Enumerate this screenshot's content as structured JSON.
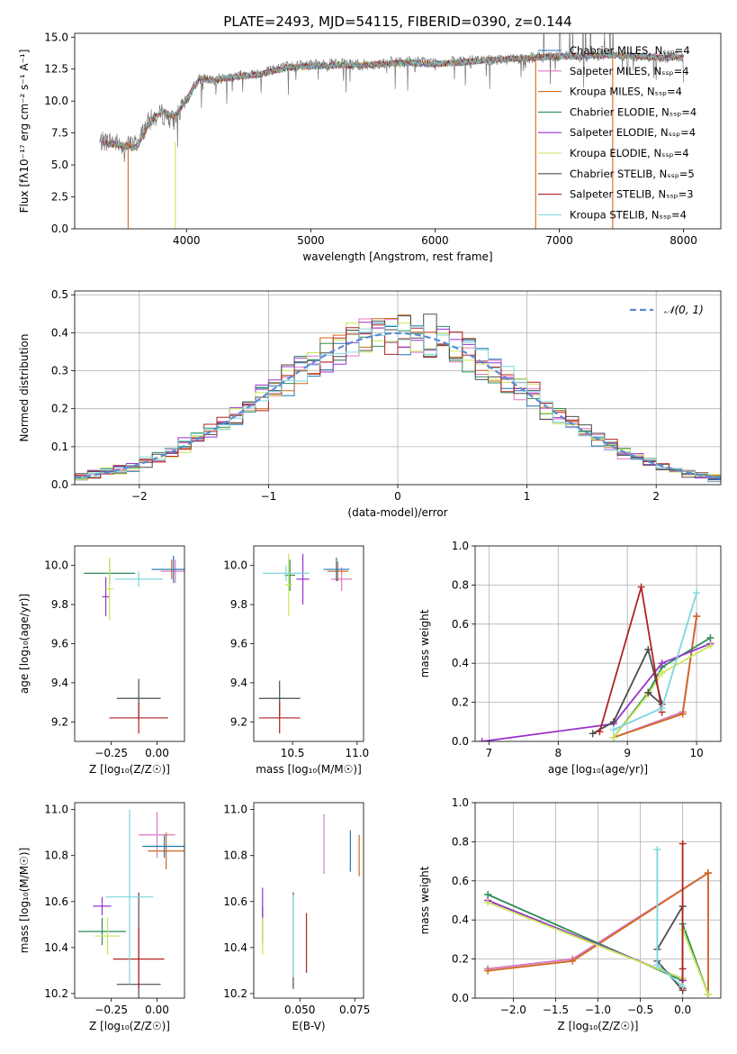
{
  "chart_data": [
    {
      "id": "spectrum",
      "type": "line",
      "title": "PLATE=2493, MJD=54115, FIBERID=0390, z=0.144",
      "xlabel": "wavelength [Angstrom, rest frame]",
      "ylabel": "Flux [fλ10⁻¹⁷ erg cm⁻² s⁻¹ A⁻¹]",
      "xlim": [
        3100,
        8300
      ],
      "ylim": [
        0,
        15.3
      ],
      "xticks": [
        4000,
        5000,
        6000,
        7000,
        8000
      ],
      "yticks": [
        0.0,
        2.5,
        5.0,
        7.5,
        10.0,
        12.5,
        15.0
      ],
      "legend": {
        "placement": "upper-right"
      },
      "series": [
        {
          "name": "Chabrier MILES, N_SSP=4",
          "color": "#1f77b4"
        },
        {
          "name": "Salpeter MILES, N_SSP=4",
          "color": "#e377c2"
        },
        {
          "name": "Kroupa MILES, N_SSP=4",
          "color": "#d2691e"
        },
        {
          "name": "Chabrier ELODIE, N_SSP=4",
          "color": "#2e8b57"
        },
        {
          "name": "Salpeter ELODIE, N_SSP=4",
          "color": "#9932cc"
        },
        {
          "name": "Kroupa ELODIE, N_SSP=4",
          "color": "#c8e65a"
        },
        {
          "name": "Chabrier STELIB, N_SSP=5",
          "color": "#4d4d4d"
        },
        {
          "name": "Salpeter STELIB, N_SSP=3",
          "color": "#b22222"
        },
        {
          "name": "Kroupa STELIB, N_SSP=4",
          "color": "#7fd6dc"
        }
      ],
      "data_series": {
        "name": "data",
        "color": "#777777",
        "x": [
          3300,
          3400,
          3500,
          3600,
          3700,
          3800,
          3900,
          4000,
          4100,
          4200,
          4400,
          4600,
          4800,
          5000,
          5200,
          5400,
          5600,
          5800,
          6000,
          6200,
          6400,
          6600,
          6800,
          7000,
          7200,
          7400,
          7600,
          7800,
          8000
        ],
        "y": [
          6.8,
          6.9,
          6.5,
          6.7,
          8.5,
          9.0,
          8.5,
          10.0,
          11.8,
          11.6,
          12.0,
          12.2,
          12.7,
          12.8,
          12.9,
          12.8,
          13.0,
          13.1,
          13.0,
          13.1,
          13.2,
          13.3,
          13.4,
          13.5,
          13.5,
          13.6,
          13.5,
          13.4,
          13.5
        ]
      },
      "model_y": [
        6.8,
        6.6,
        6.5,
        6.4,
        8.3,
        9.2,
        8.8,
        10.1,
        11.8,
        11.6,
        11.9,
        12.1,
        12.6,
        12.7,
        12.8,
        12.8,
        12.9,
        13.0,
        12.9,
        13.0,
        13.2,
        13.3,
        13.4,
        13.5,
        13.5,
        13.6,
        13.5,
        13.4,
        13.4
      ],
      "model_drop_x": [
        3530,
        3910,
        6810,
        7430
      ]
    },
    {
      "id": "residuals",
      "type": "line",
      "xlabel": "(data-model)/error",
      "ylabel": "Normed distribution",
      "xlim": [
        -2.5,
        2.5
      ],
      "ylim": [
        0,
        0.51
      ],
      "xticks": [
        -2,
        -1,
        0,
        1,
        2
      ],
      "yticks": [
        0.0,
        0.1,
        0.2,
        0.3,
        0.4,
        0.5
      ],
      "grid": true,
      "legend": {
        "placement": "upper-right",
        "label": "𝒩(0, 1)"
      },
      "reference": {
        "type": "normal",
        "mean": 0,
        "std": 1
      },
      "hist_bin_width": 0.1
    },
    {
      "id": "z-age",
      "type": "scatter",
      "xlabel": "Z [log₁₀(Z/Z☉)]",
      "ylabel": "age  [log₁₀(age/yr)]",
      "xlim": [
        -0.45,
        0.15
      ],
      "ylim": [
        9.1,
        10.1
      ],
      "xticks": [
        -0.25,
        0.0
      ],
      "yticks": [
        9.2,
        9.4,
        9.6,
        9.8,
        10.0
      ],
      "points": [
        {
          "x": 0.1,
          "y": 9.97,
          "xerr": 0.08,
          "yerr": 0.06,
          "color": "#e377c2"
        },
        {
          "x": 0.08,
          "y": 9.98,
          "xerr": 0.09,
          "yerr": 0.05,
          "color": "#d2691e"
        },
        {
          "x": 0.09,
          "y": 9.98,
          "xerr": 0.12,
          "yerr": 0.07,
          "color": "#1f77b4"
        },
        {
          "x": -0.26,
          "y": 9.96,
          "xerr": 0.14,
          "yerr": 0.06,
          "color": "#2e8b57"
        },
        {
          "x": -0.28,
          "y": 9.84,
          "xerr": 0.02,
          "yerr": 0.1,
          "color": "#9932cc"
        },
        {
          "x": -0.26,
          "y": 9.88,
          "xerr": 0.02,
          "yerr": 0.16,
          "color": "#c8e65a"
        },
        {
          "x": -0.1,
          "y": 9.32,
          "xerr": 0.12,
          "yerr": 0.1,
          "color": "#4d4d4d"
        },
        {
          "x": -0.1,
          "y": 9.22,
          "xerr": 0.16,
          "yerr": 0.08,
          "color": "#b22222"
        },
        {
          "x": -0.1,
          "y": 9.93,
          "xerr": 0.13,
          "yerr": 0.04,
          "color": "#7fd6dc"
        }
      ]
    },
    {
      "id": "mass-age",
      "type": "scatter",
      "xlabel": "mass [log₁₀(M/M☉)]",
      "ylabel": "",
      "xlim": [
        10.2,
        11.05
      ],
      "ylim": [
        9.1,
        10.1
      ],
      "xticks": [
        10.5,
        11.0
      ],
      "yticks": [
        9.2,
        9.4,
        9.6,
        9.8,
        10.0
      ],
      "points": [
        {
          "x": 10.88,
          "y": 9.93,
          "xerr": 0.08,
          "yerr": 0.06,
          "color": "#e377c2"
        },
        {
          "x": 10.85,
          "y": 9.97,
          "xerr": 0.08,
          "yerr": 0.05,
          "color": "#d2691e"
        },
        {
          "x": 10.84,
          "y": 9.98,
          "xerr": 0.1,
          "yerr": 0.06,
          "color": "#1f77b4"
        },
        {
          "x": 10.48,
          "y": 9.95,
          "xerr": 0.04,
          "yerr": 0.08,
          "color": "#2e8b57"
        },
        {
          "x": 10.58,
          "y": 9.93,
          "xerr": 0.05,
          "yerr": 0.13,
          "color": "#9932cc"
        },
        {
          "x": 10.47,
          "y": 9.9,
          "xerr": 0.03,
          "yerr": 0.16,
          "color": "#c8e65a"
        },
        {
          "x": 10.4,
          "y": 9.32,
          "xerr": 0.16,
          "yerr": 0.09,
          "color": "#4d4d4d"
        },
        {
          "x": 10.4,
          "y": 9.22,
          "xerr": 0.16,
          "yerr": 0.08,
          "color": "#b22222"
        },
        {
          "x": 10.45,
          "y": 9.96,
          "xerr": 0.18,
          "yerr": 0.04,
          "color": "#7fd6dc"
        }
      ]
    },
    {
      "id": "age-weight",
      "type": "line",
      "xlabel": "age  [log₁₀(age/yr)]",
      "ylabel": "mass weight",
      "xlim": [
        6.8,
        10.35
      ],
      "ylim": [
        0,
        1.0
      ],
      "xticks": [
        7,
        8,
        9,
        10
      ],
      "yticks": [
        0.0,
        0.2,
        0.4,
        0.6,
        0.8,
        1.0
      ],
      "grid": true,
      "series": [
        {
          "name": "Chabrier MILES",
          "color": "#1f77b4",
          "x": [
            8.8,
            9.8,
            10.0
          ],
          "y": [
            0.02,
            0.15,
            0.64
          ]
        },
        {
          "name": "Salpeter MILES",
          "color": "#e377c2",
          "x": [
            8.8,
            9.8,
            10.0
          ],
          "y": [
            0.02,
            0.15,
            0.64
          ]
        },
        {
          "name": "Kroupa MILES",
          "color": "#d2691e",
          "x": [
            8.8,
            9.8,
            10.0
          ],
          "y": [
            0.02,
            0.14,
            0.64
          ]
        },
        {
          "name": "Chabrier ELODIE",
          "color": "#2e8b57",
          "x": [
            8.8,
            9.3,
            9.5,
            10.2
          ],
          "y": [
            0.02,
            0.25,
            0.38,
            0.53
          ]
        },
        {
          "name": "Salpeter ELODIE",
          "color": "#9932cc",
          "x": [
            6.9,
            8.8,
            9.5,
            10.2
          ],
          "y": [
            0.0,
            0.09,
            0.4,
            0.5
          ]
        },
        {
          "name": "Kroupa ELODIE",
          "color": "#c8e65a",
          "x": [
            8.8,
            9.3,
            9.5,
            10.2
          ],
          "y": [
            0.02,
            0.24,
            0.35,
            0.49
          ]
        },
        {
          "name": "Chabrier STELIB",
          "color": "#4d4d4d",
          "x": [
            8.5,
            8.8,
            9.3,
            9.5,
            9.3
          ],
          "y": [
            0.04,
            0.1,
            0.47,
            0.19,
            0.25
          ]
        },
        {
          "name": "Salpeter STELIB",
          "color": "#b22222",
          "x": [
            8.6,
            9.2,
            9.5
          ],
          "y": [
            0.05,
            0.79,
            0.15
          ]
        },
        {
          "name": "Kroupa STELIB",
          "color": "#7fd6dc",
          "x": [
            8.8,
            9.5,
            10.0
          ],
          "y": [
            0.06,
            0.17,
            0.76
          ]
        }
      ]
    },
    {
      "id": "z-mass",
      "type": "scatter",
      "xlabel": "Z [log₁₀(Z/Z☉)]",
      "ylabel": "mass [log₁₀(M/M☉)]",
      "xlim": [
        -0.45,
        0.15
      ],
      "ylim": [
        10.18,
        11.03
      ],
      "xticks": [
        -0.25,
        0.0
      ],
      "yticks": [
        10.2,
        10.4,
        10.6,
        10.8,
        11.0
      ],
      "points": [
        {
          "x": 0.0,
          "y": 10.89,
          "xerr": 0.1,
          "yerr": 0.1,
          "color": "#e377c2"
        },
        {
          "x": 0.05,
          "y": 10.82,
          "xerr": 0.1,
          "yerr": 0.08,
          "color": "#d2691e"
        },
        {
          "x": 0.04,
          "y": 10.84,
          "xerr": 0.12,
          "yerr": 0.05,
          "color": "#1f77b4"
        },
        {
          "x": -0.3,
          "y": 10.47,
          "xerr": 0.13,
          "yerr": 0.06,
          "color": "#2e8b57"
        },
        {
          "x": -0.3,
          "y": 10.58,
          "xerr": 0.05,
          "yerr": 0.04,
          "color": "#9932cc"
        },
        {
          "x": -0.27,
          "y": 10.45,
          "xerr": 0.07,
          "yerr": 0.08,
          "color": "#c8e65a"
        },
        {
          "x": -0.1,
          "y": 10.24,
          "xerr": 0.12,
          "yerr": 0.4,
          "color": "#4d4d4d"
        },
        {
          "x": -0.1,
          "y": 10.35,
          "xerr": 0.14,
          "yerr": 0.13,
          "color": "#b22222"
        },
        {
          "x": -0.15,
          "y": 10.62,
          "xerr": 0.13,
          "yerr": 0.38,
          "color": "#7fd6dc"
        }
      ]
    },
    {
      "id": "ebv-mass",
      "type": "scatter",
      "xlabel": "E(B-V)",
      "ylabel": "",
      "xlim": [
        0.029,
        0.079
      ],
      "ylim": [
        10.18,
        11.03
      ],
      "xticks": [
        0.05,
        0.075
      ],
      "yticks": [
        10.2,
        10.4,
        10.6,
        10.8,
        11.0
      ],
      "points": [
        {
          "x": 0.061,
          "y": 10.85,
          "yerr": 0.13,
          "color": "#e377c2"
        },
        {
          "x": 0.077,
          "y": 10.8,
          "yerr": 0.09,
          "color": "#d2691e"
        },
        {
          "x": 0.073,
          "y": 10.82,
          "yerr": 0.09,
          "color": "#1f77b4"
        },
        {
          "x": 0.033,
          "y": 10.5,
          "yerr": 0.08,
          "color": "#2e8b57"
        },
        {
          "x": 0.033,
          "y": 10.59,
          "yerr": 0.07,
          "color": "#9932cc"
        },
        {
          "x": 0.033,
          "y": 10.45,
          "yerr": 0.08,
          "color": "#c8e65a"
        },
        {
          "x": 0.047,
          "y": 10.43,
          "yerr": 0.21,
          "color": "#4d4d4d"
        },
        {
          "x": 0.053,
          "y": 10.42,
          "yerr": 0.13,
          "color": "#b22222"
        },
        {
          "x": 0.047,
          "y": 10.45,
          "yerr": 0.18,
          "color": "#7fd6dc"
        }
      ]
    },
    {
      "id": "z-weight",
      "type": "line",
      "xlabel": "Z [log₁₀(Z/Z☉)]",
      "ylabel": "mass weight",
      "xlim": [
        -2.45,
        0.45
      ],
      "ylim": [
        0,
        1.0
      ],
      "xticks": [
        -2.0,
        -1.5,
        -1.0,
        -0.5,
        0.0
      ],
      "yticks": [
        0.0,
        0.2,
        0.4,
        0.6,
        0.8,
        1.0
      ],
      "grid": true,
      "series": [
        {
          "name": "Chabrier MILES",
          "color": "#1f77b4",
          "x": [
            -2.3,
            -1.3,
            0.3,
            0.3
          ],
          "y": [
            0.15,
            0.2,
            0.64,
            0.02
          ]
        },
        {
          "name": "Salpeter MILES",
          "color": "#e377c2",
          "x": [
            -2.3,
            -1.3,
            0.3,
            0.3
          ],
          "y": [
            0.15,
            0.2,
            0.64,
            0.02
          ]
        },
        {
          "name": "Kroupa MILES",
          "color": "#d2691e",
          "x": [
            -2.3,
            -1.3,
            0.3,
            0.3
          ],
          "y": [
            0.14,
            0.19,
            0.64,
            0.02
          ]
        },
        {
          "name": "Chabrier ELODIE",
          "color": "#2e8b57",
          "x": [
            -2.3,
            0.0,
            0.0,
            0.3
          ],
          "y": [
            0.53,
            0.09,
            0.38,
            0.02
          ]
        },
        {
          "name": "Salpeter ELODIE",
          "color": "#9932cc",
          "x": [
            -2.3,
            0.0,
            0.0
          ],
          "y": [
            0.5,
            0.1,
            0.09
          ]
        },
        {
          "name": "Kroupa ELODIE",
          "color": "#c8e65a",
          "x": [
            -2.3,
            0.0,
            0.0,
            0.3
          ],
          "y": [
            0.49,
            0.1,
            0.35,
            0.02
          ]
        },
        {
          "name": "Chabrier STELIB",
          "color": "#4d4d4d",
          "x": [
            -0.3,
            0.0,
            0.0,
            -0.3
          ],
          "y": [
            0.25,
            0.47,
            0.04,
            0.19
          ]
        },
        {
          "name": "Salpeter STELIB",
          "color": "#b22222",
          "x": [
            0.0,
            0.0,
            0.0
          ],
          "y": [
            0.79,
            0.05,
            0.15
          ]
        },
        {
          "name": "Kroupa STELIB",
          "color": "#7fd6dc",
          "x": [
            -0.3,
            -0.3,
            0.0
          ],
          "y": [
            0.76,
            0.17,
            0.06
          ]
        }
      ]
    }
  ]
}
